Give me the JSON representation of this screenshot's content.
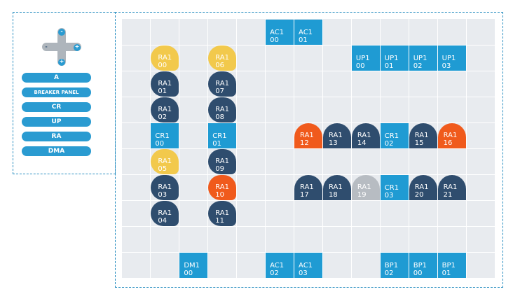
{
  "legend": {
    "zoom": {
      "top": "-",
      "bottom": "+",
      "left": "-",
      "right": "+"
    },
    "buttons": [
      "A",
      "BREAKER PANEL",
      "CR",
      "UP",
      "RA",
      "DMA"
    ]
  },
  "colors": {
    "square": "#1f9bd3",
    "navy": "#2f4d6e",
    "yellow": "#f2c94c",
    "orange": "#f05a1c",
    "grey": "#b7bcc2",
    "grid": "#e8ebef",
    "border": "#2a8fc1"
  },
  "tiles": [
    {
      "l1": "AC1",
      "l2": "00",
      "shape": "sq",
      "color": "blue",
      "col": 5,
      "row": 0
    },
    {
      "l1": "AC1",
      "l2": "01",
      "shape": "sq",
      "color": "blue",
      "col": 6,
      "row": 0
    },
    {
      "l1": "RA1",
      "l2": "00",
      "shape": "pill",
      "color": "yellow",
      "col": 1,
      "row": 1
    },
    {
      "l1": "RA1",
      "l2": "06",
      "shape": "pill",
      "color": "yellow",
      "col": 3,
      "row": 1
    },
    {
      "l1": "UP1",
      "l2": "00",
      "shape": "sq",
      "color": "blue",
      "col": 8,
      "row": 1
    },
    {
      "l1": "UP1",
      "l2": "01",
      "shape": "sq",
      "color": "blue",
      "col": 9,
      "row": 1
    },
    {
      "l1": "UP1",
      "l2": "02",
      "shape": "sq",
      "color": "blue",
      "col": 10,
      "row": 1
    },
    {
      "l1": "UP1",
      "l2": "03",
      "shape": "sq",
      "color": "blue",
      "col": 11,
      "row": 1
    },
    {
      "l1": "RA1",
      "l2": "01",
      "shape": "pill",
      "color": "navy",
      "col": 1,
      "row": 2
    },
    {
      "l1": "RA1",
      "l2": "07",
      "shape": "pill",
      "color": "navy",
      "col": 3,
      "row": 2
    },
    {
      "l1": "RA1",
      "l2": "02",
      "shape": "pill",
      "color": "navy",
      "col": 1,
      "row": 3
    },
    {
      "l1": "RA1",
      "l2": "08",
      "shape": "pill",
      "color": "navy",
      "col": 3,
      "row": 3
    },
    {
      "l1": "CR1",
      "l2": "00",
      "shape": "sq",
      "color": "blue",
      "col": 1,
      "row": 4
    },
    {
      "l1": "CR1",
      "l2": "01",
      "shape": "sq",
      "color": "blue",
      "col": 3,
      "row": 4
    },
    {
      "l1": "RA1",
      "l2": "12",
      "shape": "tomb",
      "color": "orange",
      "col": 6,
      "row": 4
    },
    {
      "l1": "RA1",
      "l2": "13",
      "shape": "tomb",
      "color": "navy",
      "col": 7,
      "row": 4
    },
    {
      "l1": "RA1",
      "l2": "14",
      "shape": "tomb",
      "color": "navy",
      "col": 8,
      "row": 4
    },
    {
      "l1": "CR1",
      "l2": "02",
      "shape": "sq",
      "color": "blue",
      "col": 9,
      "row": 4
    },
    {
      "l1": "RA1",
      "l2": "15",
      "shape": "tomb",
      "color": "navy",
      "col": 10,
      "row": 4
    },
    {
      "l1": "RA1",
      "l2": "16",
      "shape": "tomb",
      "color": "orange",
      "col": 11,
      "row": 4
    },
    {
      "l1": "RA1",
      "l2": "05",
      "shape": "pill",
      "color": "yellow",
      "col": 1,
      "row": 5
    },
    {
      "l1": "RA1",
      "l2": "09",
      "shape": "pill",
      "color": "navy",
      "col": 3,
      "row": 5
    },
    {
      "l1": "RA1",
      "l2": "03",
      "shape": "pill",
      "color": "navy",
      "col": 1,
      "row": 6
    },
    {
      "l1": "RA1",
      "l2": "10",
      "shape": "pill",
      "color": "orange",
      "col": 3,
      "row": 6
    },
    {
      "l1": "RA1",
      "l2": "17",
      "shape": "tomb",
      "color": "navy",
      "col": 6,
      "row": 6
    },
    {
      "l1": "RA1",
      "l2": "18",
      "shape": "tomb",
      "color": "navy",
      "col": 7,
      "row": 6
    },
    {
      "l1": "RA1",
      "l2": "19",
      "shape": "tomb",
      "color": "grey",
      "col": 8,
      "row": 6
    },
    {
      "l1": "CR1",
      "l2": "03",
      "shape": "sq",
      "color": "blue",
      "col": 9,
      "row": 6
    },
    {
      "l1": "RA1",
      "l2": "20",
      "shape": "tomb",
      "color": "navy",
      "col": 10,
      "row": 6
    },
    {
      "l1": "RA1",
      "l2": "21",
      "shape": "tomb",
      "color": "navy",
      "col": 11,
      "row": 6
    },
    {
      "l1": "RA1",
      "l2": "04",
      "shape": "pill",
      "color": "navy",
      "col": 1,
      "row": 7
    },
    {
      "l1": "RA1",
      "l2": "11",
      "shape": "pill",
      "color": "navy",
      "col": 3,
      "row": 7
    },
    {
      "l1": "DM1",
      "l2": "00",
      "shape": "sq",
      "color": "blue",
      "col": 2,
      "row": 9
    },
    {
      "l1": "AC1",
      "l2": "02",
      "shape": "sq",
      "color": "blue",
      "col": 5,
      "row": 9
    },
    {
      "l1": "AC1",
      "l2": "03",
      "shape": "sq",
      "color": "blue",
      "col": 6,
      "row": 9
    },
    {
      "l1": "BP1",
      "l2": "02",
      "shape": "sq",
      "color": "blue",
      "col": 9,
      "row": 9
    },
    {
      "l1": "BP1",
      "l2": "00",
      "shape": "sq",
      "color": "blue",
      "col": 10,
      "row": 9
    },
    {
      "l1": "BP1",
      "l2": "01",
      "shape": "sq",
      "color": "blue",
      "col": 11,
      "row": 9
    }
  ]
}
